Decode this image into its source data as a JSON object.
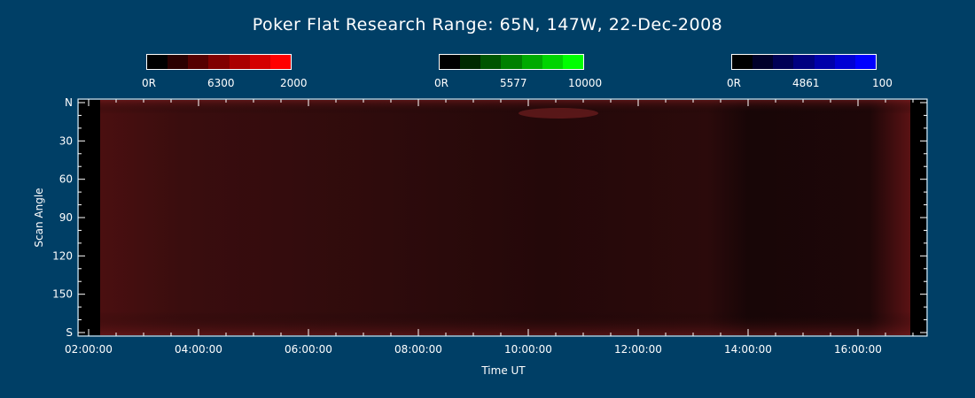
{
  "chart_data": {
    "type": "heatmap",
    "title": "Poker Flat Research Range: 65N, 147W, 22-Dec-2008",
    "xlabel": "Time UT",
    "ylabel": "Scan Angle",
    "x_ticks": [
      "02:00:00",
      "04:00:00",
      "06:00:00",
      "08:00:00",
      "10:00:00",
      "12:00:00",
      "14:00:00",
      "16:00:00"
    ],
    "y_ticks": [
      "N",
      "30",
      "60",
      "90",
      "120",
      "150",
      "S"
    ],
    "colorbars": [
      {
        "name": "6300",
        "min_label": "0R",
        "max_label": "2000",
        "colors": [
          "#000000",
          "#2a0000",
          "#550000",
          "#800000",
          "#aa0000",
          "#d40000",
          "#ff0000"
        ]
      },
      {
        "name": "5577",
        "min_label": "0R",
        "max_label": "10000",
        "colors": [
          "#000000",
          "#002a00",
          "#005500",
          "#008000",
          "#00aa00",
          "#00d400",
          "#00ff00"
        ]
      },
      {
        "name": "4861",
        "min_label": "0R",
        "max_label": "100",
        "colors": [
          "#000000",
          "#00002a",
          "#000055",
          "#000080",
          "#0000aa",
          "#0000d4",
          "#0000ff"
        ]
      }
    ]
  }
}
